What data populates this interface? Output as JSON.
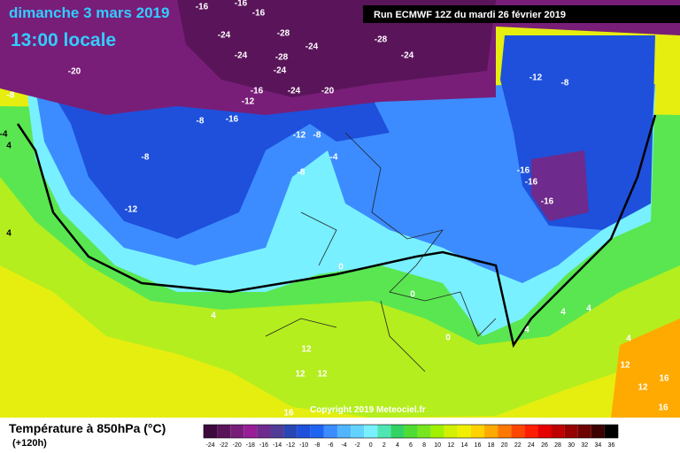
{
  "header": {
    "date": "dimanche 3 mars 2019",
    "time": "13:00 locale",
    "run": "Run ECMWF 12Z du mardi 26 février 2019"
  },
  "map": {
    "copyright": "Copyright 2019 Meteociel.fr",
    "labels": [
      -16,
      -16,
      -16,
      -24,
      -28,
      -24,
      -28,
      -24,
      -24,
      -28,
      -24,
      -20,
      -8,
      -24,
      -20,
      -16,
      -12,
      -16,
      -8,
      -12,
      -8,
      -12,
      -8,
      -8,
      -4,
      -8,
      -16,
      -16,
      -16,
      -12,
      0,
      0,
      4,
      0,
      4,
      4,
      4,
      4,
      12,
      12,
      12,
      12,
      12,
      16,
      16,
      16,
      -4,
      4,
      4
    ]
  },
  "legend": {
    "title": "Température à 850hPa (°C)",
    "lead": "(+120h)",
    "values": [
      -24,
      -22,
      -20,
      -18,
      -16,
      -14,
      -12,
      -10,
      -8,
      -6,
      -4,
      -2,
      0,
      2,
      4,
      6,
      8,
      10,
      12,
      14,
      16,
      18,
      20,
      22,
      24,
      26,
      28,
      30,
      32,
      34,
      36
    ],
    "colors": [
      "#3c0a3c",
      "#5a145a",
      "#781e78",
      "#961e96",
      "#6e2a8c",
      "#503c96",
      "#2846b4",
      "#1e50dc",
      "#1e64f0",
      "#3c8cff",
      "#50b4ff",
      "#64d2ff",
      "#78f0ff",
      "#50e6b4",
      "#32d264",
      "#50dc32",
      "#78e61e",
      "#a0f000",
      "#d2f000",
      "#f0f000",
      "#ffd200",
      "#ffaa00",
      "#ff7800",
      "#ff4600",
      "#ff1e00",
      "#e60000",
      "#be0000",
      "#960000",
      "#6e0000",
      "#3c0000",
      "#000000"
    ]
  }
}
